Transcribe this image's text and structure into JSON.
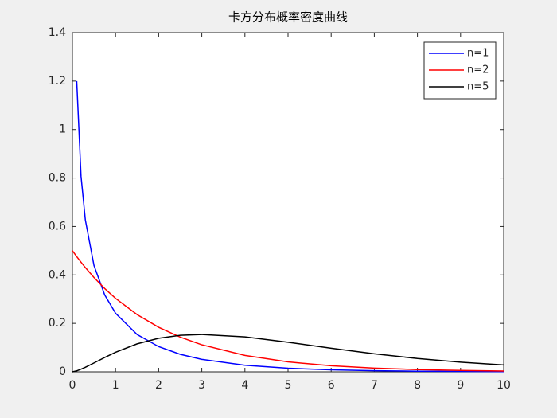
{
  "chart_data": {
    "type": "line",
    "title": "卡方分布概率密度曲线",
    "x": [
      0,
      0.1,
      0.2,
      0.3,
      0.5,
      0.75,
      1,
      1.5,
      2,
      2.5,
      3,
      4,
      5,
      6,
      7,
      8,
      9,
      10
    ],
    "series": [
      {
        "name": "n=1",
        "color": "#0000ff",
        "values": [
          null,
          1.2,
          0.807,
          0.627,
          0.439,
          0.317,
          0.242,
          0.154,
          0.104,
          0.0723,
          0.0514,
          0.027,
          0.0146,
          0.0081,
          0.0046,
          0.0026,
          0.0015,
          0.00085
        ]
      },
      {
        "name": "n=2",
        "color": "#ff0000",
        "values": [
          0.5,
          0.4756,
          0.4524,
          0.4304,
          0.3894,
          0.3437,
          0.3033,
          0.2362,
          0.1839,
          0.1433,
          0.1116,
          0.0677,
          0.041,
          0.0249,
          0.0151,
          0.0092,
          0.0056,
          0.0034
        ]
      },
      {
        "name": "n=5",
        "color": "#000000",
        "values": [
          0,
          0.004,
          0.0108,
          0.0188,
          0.0366,
          0.0594,
          0.0807,
          0.1154,
          0.1384,
          0.1506,
          0.1542,
          0.144,
          0.122,
          0.0973,
          0.0744,
          0.0551,
          0.0399,
          0.0283
        ]
      }
    ],
    "xlim": [
      0,
      10
    ],
    "xticks": [
      0,
      1,
      2,
      3,
      4,
      5,
      6,
      7,
      8,
      9,
      10
    ],
    "ylim": [
      0,
      1.4
    ],
    "yticks": [
      0,
      0.2,
      0.4,
      0.6,
      0.8,
      1,
      1.2,
      1.4
    ],
    "grid": false,
    "legend": "northeast"
  }
}
